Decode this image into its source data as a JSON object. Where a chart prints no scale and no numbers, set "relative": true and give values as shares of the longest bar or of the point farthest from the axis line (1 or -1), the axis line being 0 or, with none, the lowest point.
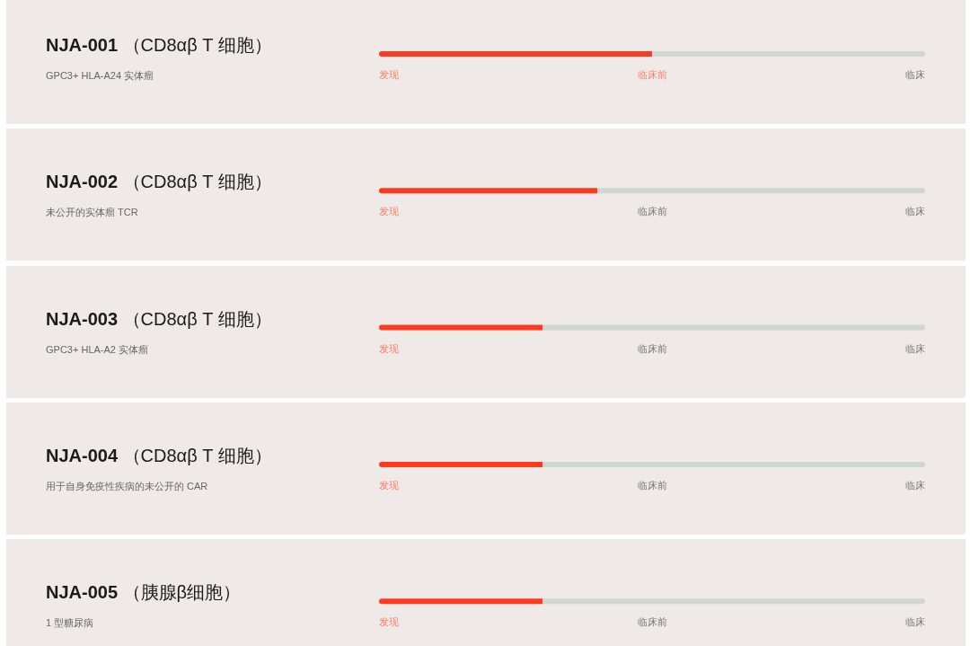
{
  "chart_data": {
    "type": "bar",
    "orientation": "horizontal",
    "stacked": true,
    "relative": true,
    "categories": [
      "NJA-001 （CD8αβ T 细胞）",
      "NJA-002 （CD8αβ T 细胞）",
      "NJA-003 （CD8αβ T 细胞）",
      "NJA-004 （CD8αβ T 细胞）",
      "NJA-005 （胰腺β细胞）"
    ],
    "series": [
      {
        "color": "#ff3a1e",
        "values": [
          0.5,
          0.4,
          0.3,
          0.3,
          0.3
        ]
      },
      {
        "color": "#d0d6d3",
        "values": [
          0.5,
          0.6,
          0.7,
          0.7,
          0.7
        ]
      }
    ],
    "annotations": [
      "GPC3+ HLA-A24 实体瘤",
      "未公开的实体瘤 TCR",
      "GPC3+ HLA-A2 实体瘤",
      "用于自身免疫性疾病的未公开的 CAR",
      "1 型糖尿病",
      "发现",
      "临床前",
      "临床"
    ]
  }
}
